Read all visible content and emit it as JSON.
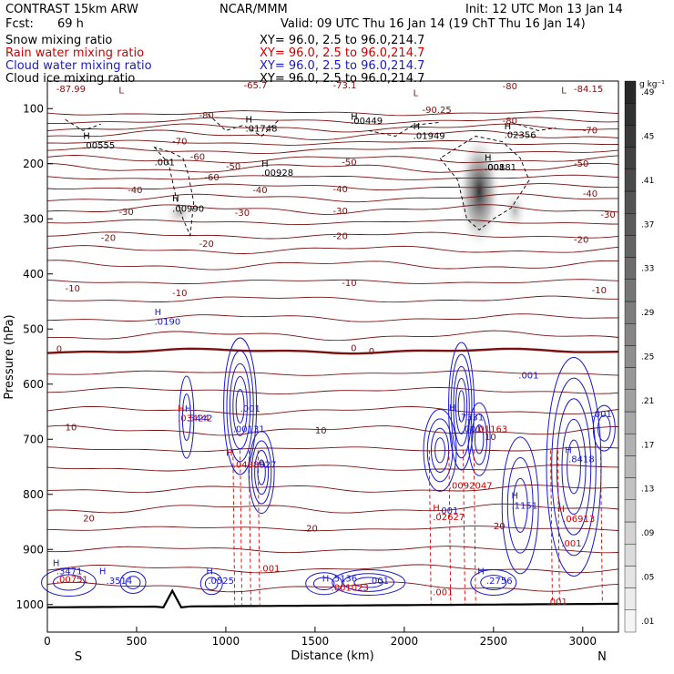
{
  "header": {
    "model": "CONTRAST 15km ARW",
    "org": "NCAR/MMM",
    "init": "Init: 12 UTC Mon 13 Jan 14",
    "fcst_label": "Fcst:",
    "fcst_value": "69 h",
    "valid": "Valid: 09 UTC Thu 16 Jan 14 (19 ChT Thu 16 Jan 14)"
  },
  "legend": [
    {
      "name": "Snow mixing ratio",
      "color": "#000000",
      "xy": "XY=  96.0,  2.5 to  96.0,214.7"
    },
    {
      "name": "Rain water mixing ratio",
      "color": "#d40000",
      "xy": "XY=  96.0,  2.5 to  96.0,214.7"
    },
    {
      "name": "Cloud water mixing ratio",
      "color": "#1a1acc",
      "xy": "XY=  96.0,  2.5 to  96.0,214.7"
    },
    {
      "name": "Cloud ice mixing ratio",
      "color": "#000000",
      "xy": "XY=  96.0,  2.5 to  96.0,214.7"
    }
  ],
  "colors": {
    "temperature": "#7a1010",
    "zero_isotherm": "#7a1010",
    "rain": "#d40000",
    "cloud": "#1a1acc",
    "ice": "#000000",
    "terrain": "#000000"
  },
  "chart_data": {
    "type": "cross-section",
    "xlabel": "Distance (km)",
    "ylabel": "Pressure (hPa)",
    "xlim": [
      0,
      3200
    ],
    "ylim": [
      1050,
      50
    ],
    "x_ticks": [
      "0",
      "500",
      "1000",
      "1500",
      "2000",
      "2500",
      "3000"
    ],
    "y_ticks": [
      "100",
      "200",
      "300",
      "400",
      "500",
      "600",
      "700",
      "800",
      "900",
      "1000"
    ],
    "end_labels": {
      "left": "S",
      "right": "N"
    },
    "colorbar": {
      "unit": "g kg⁻¹",
      "ticks": [
        ".01",
        ".05",
        ".09",
        ".13",
        ".17",
        ".21",
        ".25",
        ".29",
        ".33",
        ".37",
        ".41",
        ".45",
        ".49"
      ]
    },
    "temperature_labels": [
      {
        "x": 50,
        "p": 70,
        "text": "-87.99"
      },
      {
        "x": 1100,
        "p": 63,
        "text": "-65.7"
      },
      {
        "x": 1600,
        "p": 63,
        "text": "-73.1"
      },
      {
        "x": 2100,
        "p": 108,
        "text": "-90.25"
      },
      {
        "x": 2950,
        "p": 70,
        "text": "-84.15"
      },
      {
        "x": 2550,
        "p": 65,
        "text": "-80"
      },
      {
        "x": 850,
        "p": 118,
        "text": "-80"
      },
      {
        "x": 2550,
        "p": 128,
        "text": "-80"
      },
      {
        "x": 3000,
        "p": 145,
        "text": "-70"
      },
      {
        "x": 700,
        "p": 165,
        "text": "-70"
      },
      {
        "x": 800,
        "p": 193,
        "text": "-60"
      },
      {
        "x": 880,
        "p": 230,
        "text": "-60"
      },
      {
        "x": 1000,
        "p": 210,
        "text": "-50"
      },
      {
        "x": 1650,
        "p": 203,
        "text": "-50"
      },
      {
        "x": 2950,
        "p": 205,
        "text": "-50"
      },
      {
        "x": 450,
        "p": 253,
        "text": "-40"
      },
      {
        "x": 1150,
        "p": 253,
        "text": "-40"
      },
      {
        "x": 1600,
        "p": 252,
        "text": "-40"
      },
      {
        "x": 3000,
        "p": 260,
        "text": "-40"
      },
      {
        "x": 400,
        "p": 293,
        "text": "-30"
      },
      {
        "x": 1050,
        "p": 295,
        "text": "-30"
      },
      {
        "x": 1600,
        "p": 291,
        "text": "-30"
      },
      {
        "x": 3100,
        "p": 298,
        "text": "-30"
      },
      {
        "x": 300,
        "p": 340,
        "text": "-20"
      },
      {
        "x": 850,
        "p": 351,
        "text": "-20"
      },
      {
        "x": 1600,
        "p": 337,
        "text": "-20"
      },
      {
        "x": 2950,
        "p": 343,
        "text": "-20"
      },
      {
        "x": 100,
        "p": 432,
        "text": "-10"
      },
      {
        "x": 700,
        "p": 440,
        "text": "-10"
      },
      {
        "x": 1650,
        "p": 422,
        "text": "-10"
      },
      {
        "x": 3050,
        "p": 435,
        "text": "-10"
      },
      {
        "x": 50,
        "p": 542,
        "text": "0"
      },
      {
        "x": 1700,
        "p": 540,
        "text": "0"
      },
      {
        "x": 1800,
        "p": 546,
        "text": "0"
      },
      {
        "x": 100,
        "p": 684,
        "text": "10"
      },
      {
        "x": 1500,
        "p": 690,
        "text": "10"
      },
      {
        "x": 2450,
        "p": 701,
        "text": "10"
      },
      {
        "x": 200,
        "p": 849,
        "text": "20"
      },
      {
        "x": 1450,
        "p": 867,
        "text": "20"
      },
      {
        "x": 2500,
        "p": 863,
        "text": "20"
      }
    ],
    "extrema_labels": [
      {
        "x": 400,
        "p": 72,
        "text": "L",
        "color": "#7a1010"
      },
      {
        "x": 2050,
        "p": 77,
        "text": "L",
        "color": "#7a1010"
      },
      {
        "x": 2880,
        "p": 72,
        "text": "L",
        "color": "#7a1010"
      },
      {
        "x": 200,
        "p": 155,
        "text": "H",
        "color": "#000000"
      },
      {
        "x": 200,
        "p": 172,
        "text": ".00555",
        "color": "#000000"
      },
      {
        "x": 1110,
        "p": 125,
        "text": "H",
        "color": "#000000"
      },
      {
        "x": 1110,
        "p": 142,
        "text": ".01748",
        "color": "#000000"
      },
      {
        "x": 1700,
        "p": 120,
        "text": "H",
        "color": "#000000"
      },
      {
        "x": 1700,
        "p": 128,
        "text": ".00449",
        "color": "#000000"
      },
      {
        "x": 2050,
        "p": 138,
        "text": "H",
        "color": "#000000"
      },
      {
        "x": 2050,
        "p": 155,
        "text": ".01949",
        "color": "#000000"
      },
      {
        "x": 2560,
        "p": 138,
        "text": "H",
        "color": "#000000"
      },
      {
        "x": 2560,
        "p": 153,
        "text": ".02356",
        "color": "#000000"
      },
      {
        "x": 1200,
        "p": 205,
        "text": "H",
        "color": "#000000"
      },
      {
        "x": 1200,
        "p": 222,
        "text": ".00928",
        "color": "#000000"
      },
      {
        "x": 2450,
        "p": 195,
        "text": "H",
        "color": "#000000"
      },
      {
        "x": 2450,
        "p": 212,
        "text": ".00881",
        "color": "#000000"
      },
      {
        "x": 600,
        "p": 203,
        "text": ".001",
        "color": "#000000"
      },
      {
        "x": 2450,
        "p": 212,
        "text": ".001",
        "color": "#000000"
      },
      {
        "x": 700,
        "p": 268,
        "text": "H",
        "color": "#000000"
      },
      {
        "x": 700,
        "p": 287,
        "text": ".00990",
        "color": "#000000"
      },
      {
        "x": 600,
        "p": 475,
        "text": "H",
        "color": "#1a1acc"
      },
      {
        "x": 600,
        "p": 492,
        "text": ".0190",
        "color": "#1a1acc"
      },
      {
        "x": 730,
        "p": 650,
        "text": "H",
        "color": "#d40000"
      },
      {
        "x": 730,
        "p": 667,
        "text": ".03424",
        "color": "#d40000"
      },
      {
        "x": 770,
        "p": 650,
        "text": "H",
        "color": "#1a1acc"
      },
      {
        "x": 780,
        "p": 667,
        "text": ".5442",
        "color": "#1a1acc"
      },
      {
        "x": 1080,
        "p": 650,
        "text": ".001",
        "color": "#1a1acc"
      },
      {
        "x": 1040,
        "p": 687,
        "text": ".00131",
        "color": "#1a1acc"
      },
      {
        "x": 1000,
        "p": 730,
        "text": "H",
        "color": "#d40000"
      },
      {
        "x": 1040,
        "p": 752,
        "text": ".04886",
        "color": "#d40000"
      },
      {
        "x": 1170,
        "p": 752,
        "text": ".927",
        "color": "#1a1acc"
      },
      {
        "x": 2250,
        "p": 648,
        "text": "H",
        "color": "#1a1acc"
      },
      {
        "x": 2300,
        "p": 666,
        "text": ".7331",
        "color": "#1a1acc"
      },
      {
        "x": 2320,
        "p": 687,
        "text": ".001",
        "color": "#1a1acc"
      },
      {
        "x": 2400,
        "p": 687,
        "text": ".01163",
        "color": "#d40000"
      },
      {
        "x": 2250,
        "p": 790,
        "text": ".0092",
        "color": "#d40000"
      },
      {
        "x": 2380,
        "p": 790,
        "text": ".047",
        "color": "#d40000"
      },
      {
        "x": 2640,
        "p": 590,
        "text": ".001",
        "color": "#1a1acc"
      },
      {
        "x": 3050,
        "p": 660,
        "text": ".001",
        "color": "#1a1acc"
      },
      {
        "x": 2900,
        "p": 725,
        "text": "H",
        "color": "#1a1acc"
      },
      {
        "x": 2920,
        "p": 742,
        "text": ".8418",
        "color": "#1a1acc"
      },
      {
        "x": 2600,
        "p": 808,
        "text": "H",
        "color": "#1a1acc"
      },
      {
        "x": 2600,
        "p": 826,
        "text": ".1151",
        "color": "#1a1acc"
      },
      {
        "x": 2160,
        "p": 830,
        "text": "H",
        "color": "#d40000"
      },
      {
        "x": 2160,
        "p": 847,
        "text": ".02627",
        "color": "#d40000"
      },
      {
        "x": 2190,
        "p": 835,
        "text": ".001",
        "color": "#1a1acc"
      },
      {
        "x": 2860,
        "p": 832,
        "text": "H",
        "color": "#d40000"
      },
      {
        "x": 2890,
        "p": 850,
        "text": ".06913",
        "color": "#d40000"
      },
      {
        "x": 2880,
        "p": 895,
        "text": ".001",
        "color": "#d40000"
      },
      {
        "x": 30,
        "p": 930,
        "text": "H",
        "color": "#1a1acc"
      },
      {
        "x": 50,
        "p": 945,
        "text": ".3471",
        "color": "#1a1acc"
      },
      {
        "x": 50,
        "p": 960,
        "text": ".00751",
        "color": "#d40000"
      },
      {
        "x": 290,
        "p": 945,
        "text": "H",
        "color": "#1a1acc"
      },
      {
        "x": 330,
        "p": 962,
        "text": ".3514",
        "color": "#1a1acc"
      },
      {
        "x": 890,
        "p": 945,
        "text": "H",
        "color": "#1a1acc"
      },
      {
        "x": 900,
        "p": 962,
        "text": ".0525",
        "color": "#1a1acc"
      },
      {
        "x": 1190,
        "p": 940,
        "text": ".001",
        "color": "#d40000"
      },
      {
        "x": 1540,
        "p": 958,
        "text": "H",
        "color": "#1a1acc"
      },
      {
        "x": 1590,
        "p": 958,
        "text": ".5136",
        "color": "#1a1acc"
      },
      {
        "x": 1590,
        "p": 975,
        "text": ".001023",
        "color": "#d40000"
      },
      {
        "x": 1800,
        "p": 962,
        "text": ".001",
        "color": "#1a1acc"
      },
      {
        "x": 2410,
        "p": 945,
        "text": "H",
        "color": "#1a1acc"
      },
      {
        "x": 2460,
        "p": 962,
        "text": ".2756",
        "color": "#1a1acc"
      },
      {
        "x": 2160,
        "p": 983,
        "text": ".001",
        "color": "#d40000"
      },
      {
        "x": 2800,
        "p": 1000,
        "text": ".001",
        "color": "#d40000"
      }
    ]
  }
}
